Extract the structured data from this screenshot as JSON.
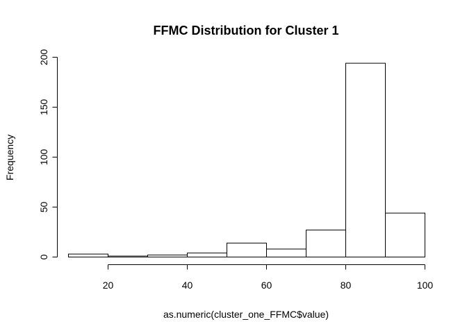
{
  "chart_data": {
    "type": "bar",
    "title": "FFMC Distribution for Cluster 1",
    "xlabel": "as.numeric(cluster_one_FFMC$value)",
    "ylabel": "Frequency",
    "bin_edges": [
      10,
      20,
      30,
      40,
      50,
      60,
      70,
      80,
      90,
      100
    ],
    "values": [
      3,
      1,
      2,
      4,
      14,
      8,
      27,
      194,
      44
    ],
    "xlim": [
      10,
      100
    ],
    "ylim": [
      0,
      200
    ],
    "x_ticks": [
      "20",
      "40",
      "60",
      "80",
      "100"
    ],
    "y_ticks": [
      "0",
      "50",
      "100",
      "150",
      "200"
    ],
    "grid": false,
    "colors": {
      "bar_fill": "#ffffff",
      "bar_stroke": "#000000"
    }
  }
}
